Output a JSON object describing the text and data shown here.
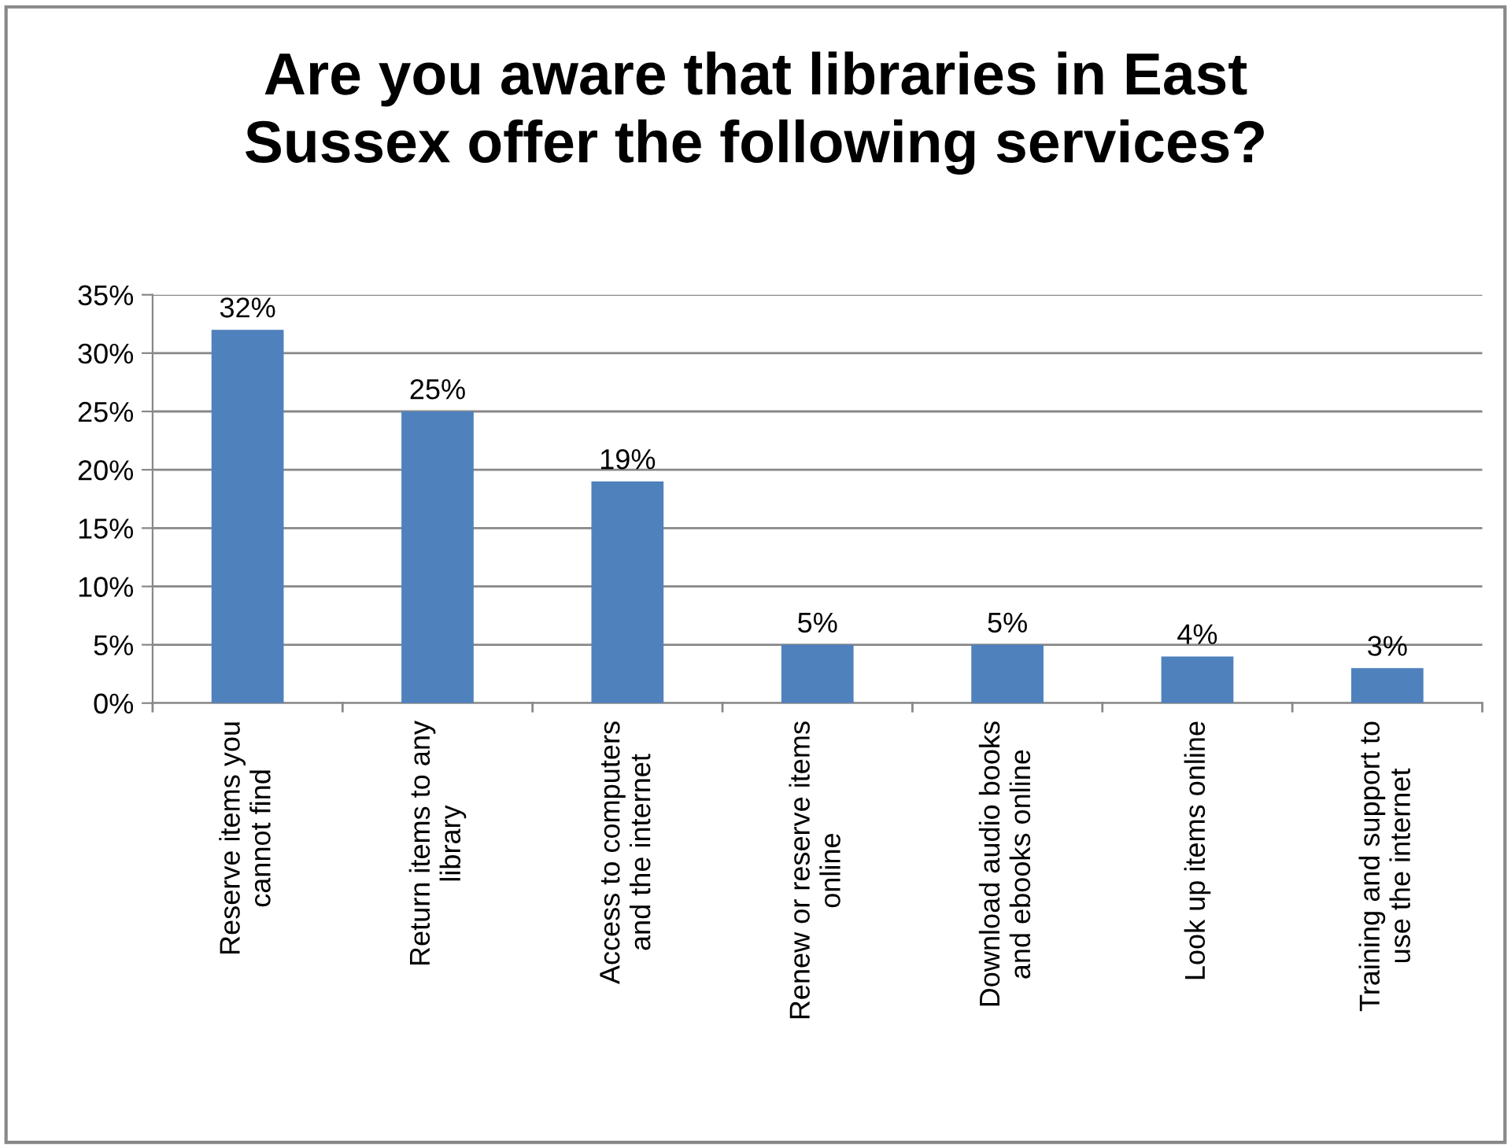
{
  "chart_data": {
    "type": "bar",
    "title": "Are you aware that libraries in East\nSussex offer the following services?",
    "categories": [
      "Reserve items you\ncannot find",
      "Return items to any\nlibrary",
      "Access to computers\nand the internet",
      "Renew or reserve items\nonline",
      "Download audio books\nand ebooks online",
      "Look up items online",
      "Training and support to\nuse the internet"
    ],
    "values": [
      32,
      25,
      19,
      5,
      5,
      4,
      3
    ],
    "value_labels": [
      "32%",
      "25%",
      "19%",
      "5%",
      "5%",
      "4%",
      "3%"
    ],
    "color": "#4f81bd",
    "ylim": [
      0,
      35
    ],
    "yticks": [
      {
        "value": 0,
        "label": "0%"
      },
      {
        "value": 5,
        "label": "5%"
      },
      {
        "value": 10,
        "label": "10%"
      },
      {
        "value": 15,
        "label": "15%"
      },
      {
        "value": 20,
        "label": "20%"
      },
      {
        "value": 25,
        "label": "25%"
      },
      {
        "value": 30,
        "label": "30%"
      },
      {
        "value": 35,
        "label": "35%"
      }
    ],
    "grid": "y",
    "legend": false
  }
}
